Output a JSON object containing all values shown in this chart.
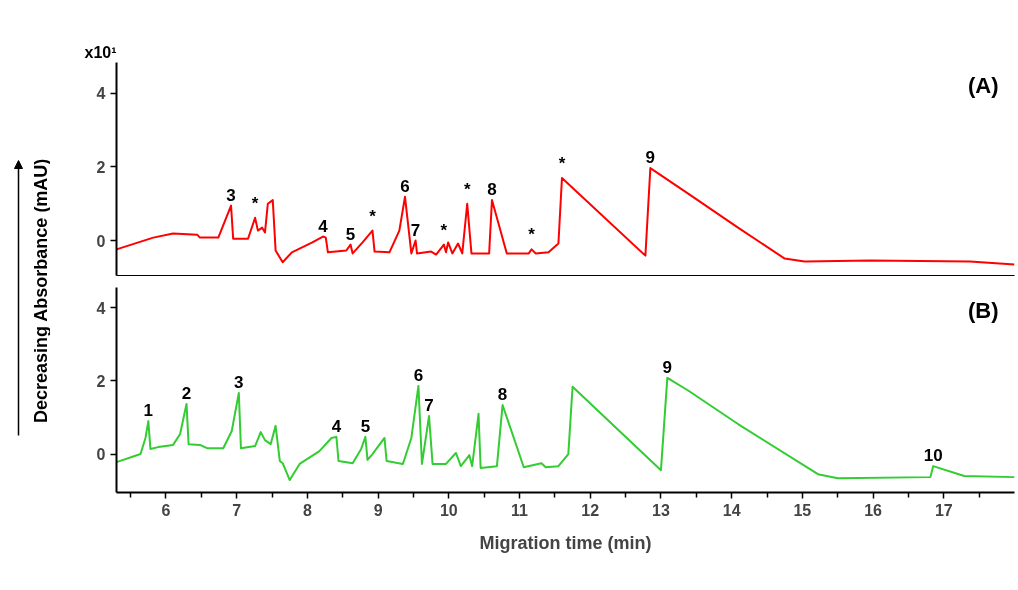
{
  "chart_data": [
    {
      "type": "line",
      "title": "(A)",
      "ylabel": "Decreasing Absorbance (mAU)",
      "xlim": [
        5.3,
        18.0
      ],
      "ylim": [
        -0.95,
        4.84
      ],
      "yticks": [
        0,
        2,
        4
      ],
      "tick_labels": "y",
      "line_style": "solid",
      "annotations": [
        "x10¹",
        {
          "text": "3",
          "x": 6.92,
          "y": 0.95
        },
        {
          "text": "*",
          "x": 7.26,
          "y": 0.62
        },
        {
          "text": "4",
          "x": 8.22,
          "y": 0.11
        },
        {
          "text": "5",
          "x": 8.61,
          "y": -0.11
        },
        {
          "text": "*",
          "x": 8.92,
          "y": 0.27
        },
        {
          "text": "6",
          "x": 9.38,
          "y": 1.19
        },
        {
          "text": "7",
          "x": 9.53,
          "y": 0.0
        },
        {
          "text": "*",
          "x": 9.93,
          "y": -0.11
        },
        {
          "text": "*",
          "x": 10.26,
          "y": 1.0
        },
        {
          "text": "8",
          "x": 10.61,
          "y": 1.1
        },
        {
          "text": "*",
          "x": 11.17,
          "y": -0.24
        },
        {
          "text": "*",
          "x": 11.6,
          "y": 1.7
        },
        {
          "text": "9",
          "x": 12.85,
          "y": 1.97
        }
      ],
      "series": [
        {
          "color": "#ff0000",
          "x": [
            5.3,
            5.82,
            6.1,
            6.44,
            6.48,
            6.74,
            6.92,
            6.95,
            7.16,
            7.26,
            7.3,
            7.36,
            7.4,
            7.44,
            7.51,
            7.55,
            7.65,
            7.78,
            8.07,
            8.22,
            8.26,
            8.29,
            8.55,
            8.61,
            8.64,
            8.78,
            8.92,
            8.95,
            9.16,
            9.3,
            9.38,
            9.47,
            9.53,
            9.55,
            9.75,
            9.82,
            9.93,
            9.96,
            9.99,
            10.05,
            10.13,
            10.19,
            10.26,
            10.32,
            10.57,
            10.61,
            10.82,
            11.13,
            11.17,
            11.23,
            11.41,
            11.55,
            11.6,
            12.78,
            12.85,
            13.39,
            14.09,
            14.75,
            15.03,
            15.96,
            17.37,
            18.0
          ],
          "values": [
            -0.24,
            0.08,
            0.19,
            0.16,
            0.08,
            0.08,
            0.95,
            0.05,
            0.05,
            0.62,
            0.27,
            0.35,
            0.22,
            1.0,
            1.1,
            -0.27,
            -0.59,
            -0.32,
            -0.05,
            0.11,
            0.08,
            -0.32,
            -0.27,
            -0.11,
            -0.35,
            -0.05,
            0.27,
            -0.3,
            -0.32,
            0.27,
            1.19,
            -0.35,
            0.0,
            -0.35,
            -0.3,
            -0.38,
            -0.11,
            -0.32,
            -0.05,
            -0.35,
            -0.08,
            -0.35,
            1.0,
            -0.35,
            -0.35,
            1.1,
            -0.35,
            -0.35,
            -0.24,
            -0.35,
            -0.32,
            -0.08,
            1.7,
            -0.41,
            1.97,
            1.27,
            0.35,
            -0.49,
            -0.57,
            -0.54,
            -0.57,
            -0.65
          ]
        }
      ]
    },
    {
      "type": "line",
      "title": "(B)",
      "xlabel": "Migration time (min)",
      "xlim": [
        5.3,
        18.0
      ],
      "ylim": [
        -1.05,
        4.55
      ],
      "yticks": [
        0,
        2,
        4
      ],
      "xticks": [
        {
          "value": 5.5,
          "label": null
        },
        6,
        {
          "value": 6.5,
          "label": null
        },
        7,
        {
          "value": 7.5,
          "label": null
        },
        8,
        {
          "value": 8.5,
          "label": null
        },
        9,
        {
          "value": 9.5,
          "label": null
        },
        10,
        {
          "value": 10.5,
          "label": null
        },
        11,
        {
          "value": 11.5,
          "label": null
        },
        12,
        {
          "value": 12.5,
          "label": null
        },
        13,
        {
          "value": 13.5,
          "label": null
        },
        14,
        {
          "value": 14.5,
          "label": null
        },
        15,
        {
          "value": 15.5,
          "label": null
        },
        16,
        {
          "value": 16.5,
          "label": null
        },
        17,
        {
          "value": 17.5,
          "label": null
        }
      ],
      "line_style": "solid",
      "annotations": [
        {
          "text": "1",
          "x": 5.75,
          "y": 0.9
        },
        {
          "text": "2",
          "x": 6.29,
          "y": 1.37
        },
        {
          "text": "3",
          "x": 7.03,
          "y": 1.67
        },
        {
          "text": "4",
          "x": 8.41,
          "y": 0.47
        },
        {
          "text": "5",
          "x": 8.82,
          "y": 0.47
        },
        {
          "text": "6",
          "x": 9.57,
          "y": 1.86
        },
        {
          "text": "7",
          "x": 9.72,
          "y": 1.04
        },
        {
          "text": "8",
          "x": 10.76,
          "y": 1.34
        },
        {
          "text": "9",
          "x": 13.09,
          "y": 2.08
        },
        {
          "text": "10",
          "x": 16.85,
          "y": -0.33
        }
      ],
      "series": [
        {
          "color": "#33cc33",
          "x": [
            5.3,
            5.64,
            5.71,
            5.75,
            5.78,
            5.89,
            6.1,
            6.2,
            6.29,
            6.32,
            6.48,
            6.58,
            6.81,
            6.93,
            7.03,
            7.06,
            7.26,
            7.34,
            7.4,
            7.48,
            7.55,
            7.61,
            7.65,
            7.75,
            7.89,
            8.17,
            8.34,
            8.41,
            8.44,
            8.64,
            8.76,
            8.82,
            8.85,
            8.92,
            9.09,
            9.12,
            9.35,
            9.47,
            9.57,
            9.62,
            9.72,
            9.77,
            9.96,
            10.1,
            10.17,
            10.29,
            10.33,
            10.42,
            10.45,
            10.68,
            10.76,
            11.06,
            11.31,
            11.37,
            11.55,
            11.69,
            11.75,
            13.0,
            13.09,
            13.39,
            14.09,
            15.22,
            15.5,
            16.81,
            16.85,
            17.29,
            18.0
          ],
          "values": [
            -0.22,
            0.0,
            0.44,
            0.9,
            0.14,
            0.19,
            0.25,
            0.55,
            1.37,
            0.27,
            0.25,
            0.16,
            0.16,
            0.63,
            1.67,
            0.16,
            0.22,
            0.6,
            0.38,
            0.27,
            0.77,
            -0.19,
            -0.25,
            -0.71,
            -0.27,
            0.08,
            0.44,
            0.47,
            -0.19,
            -0.25,
            0.14,
            0.47,
            -0.16,
            0.0,
            0.44,
            -0.19,
            -0.27,
            0.44,
            1.86,
            -0.27,
            1.04,
            -0.27,
            -0.27,
            0.03,
            -0.33,
            -0.03,
            -0.33,
            1.1,
            -0.38,
            -0.33,
            1.34,
            -0.36,
            -0.25,
            -0.36,
            -0.33,
            0.0,
            1.84,
            -0.44,
            2.08,
            1.73,
            0.82,
            -0.55,
            -0.66,
            -0.63,
            -0.33,
            -0.6,
            -0.63
          ]
        }
      ]
    }
  ]
}
